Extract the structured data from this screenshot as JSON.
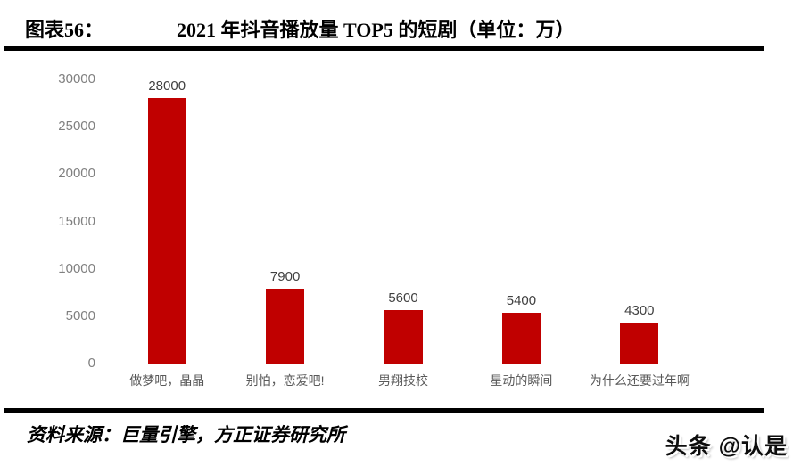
{
  "header": {
    "figure_label": "图表56：",
    "title": "2021 年抖音播放量 TOP5 的短剧（单位：万）"
  },
  "chart_data": {
    "type": "bar",
    "title": "2021 年抖音播放量 TOP5 的短剧",
    "unit": "万",
    "categories": [
      "做梦吧，晶晶",
      "别怕，恋爱吧!",
      "男翔技校",
      "星动的瞬间",
      "为什么还要过年啊"
    ],
    "values": [
      28000,
      7900,
      5600,
      5400,
      4300
    ],
    "xlabel": "",
    "ylabel": "",
    "ylim": [
      0,
      30000
    ],
    "yticks": [
      0,
      5000,
      10000,
      15000,
      20000,
      25000,
      30000
    ],
    "bar_color": "#c00000",
    "value_label_color": "#404040",
    "axis_label_color": "#808080",
    "grid": false,
    "legend": false,
    "value_labels": true
  },
  "footer": {
    "source": "资料来源：巨量引擎，方正证券研究所",
    "watermark": "头条 @认是"
  }
}
